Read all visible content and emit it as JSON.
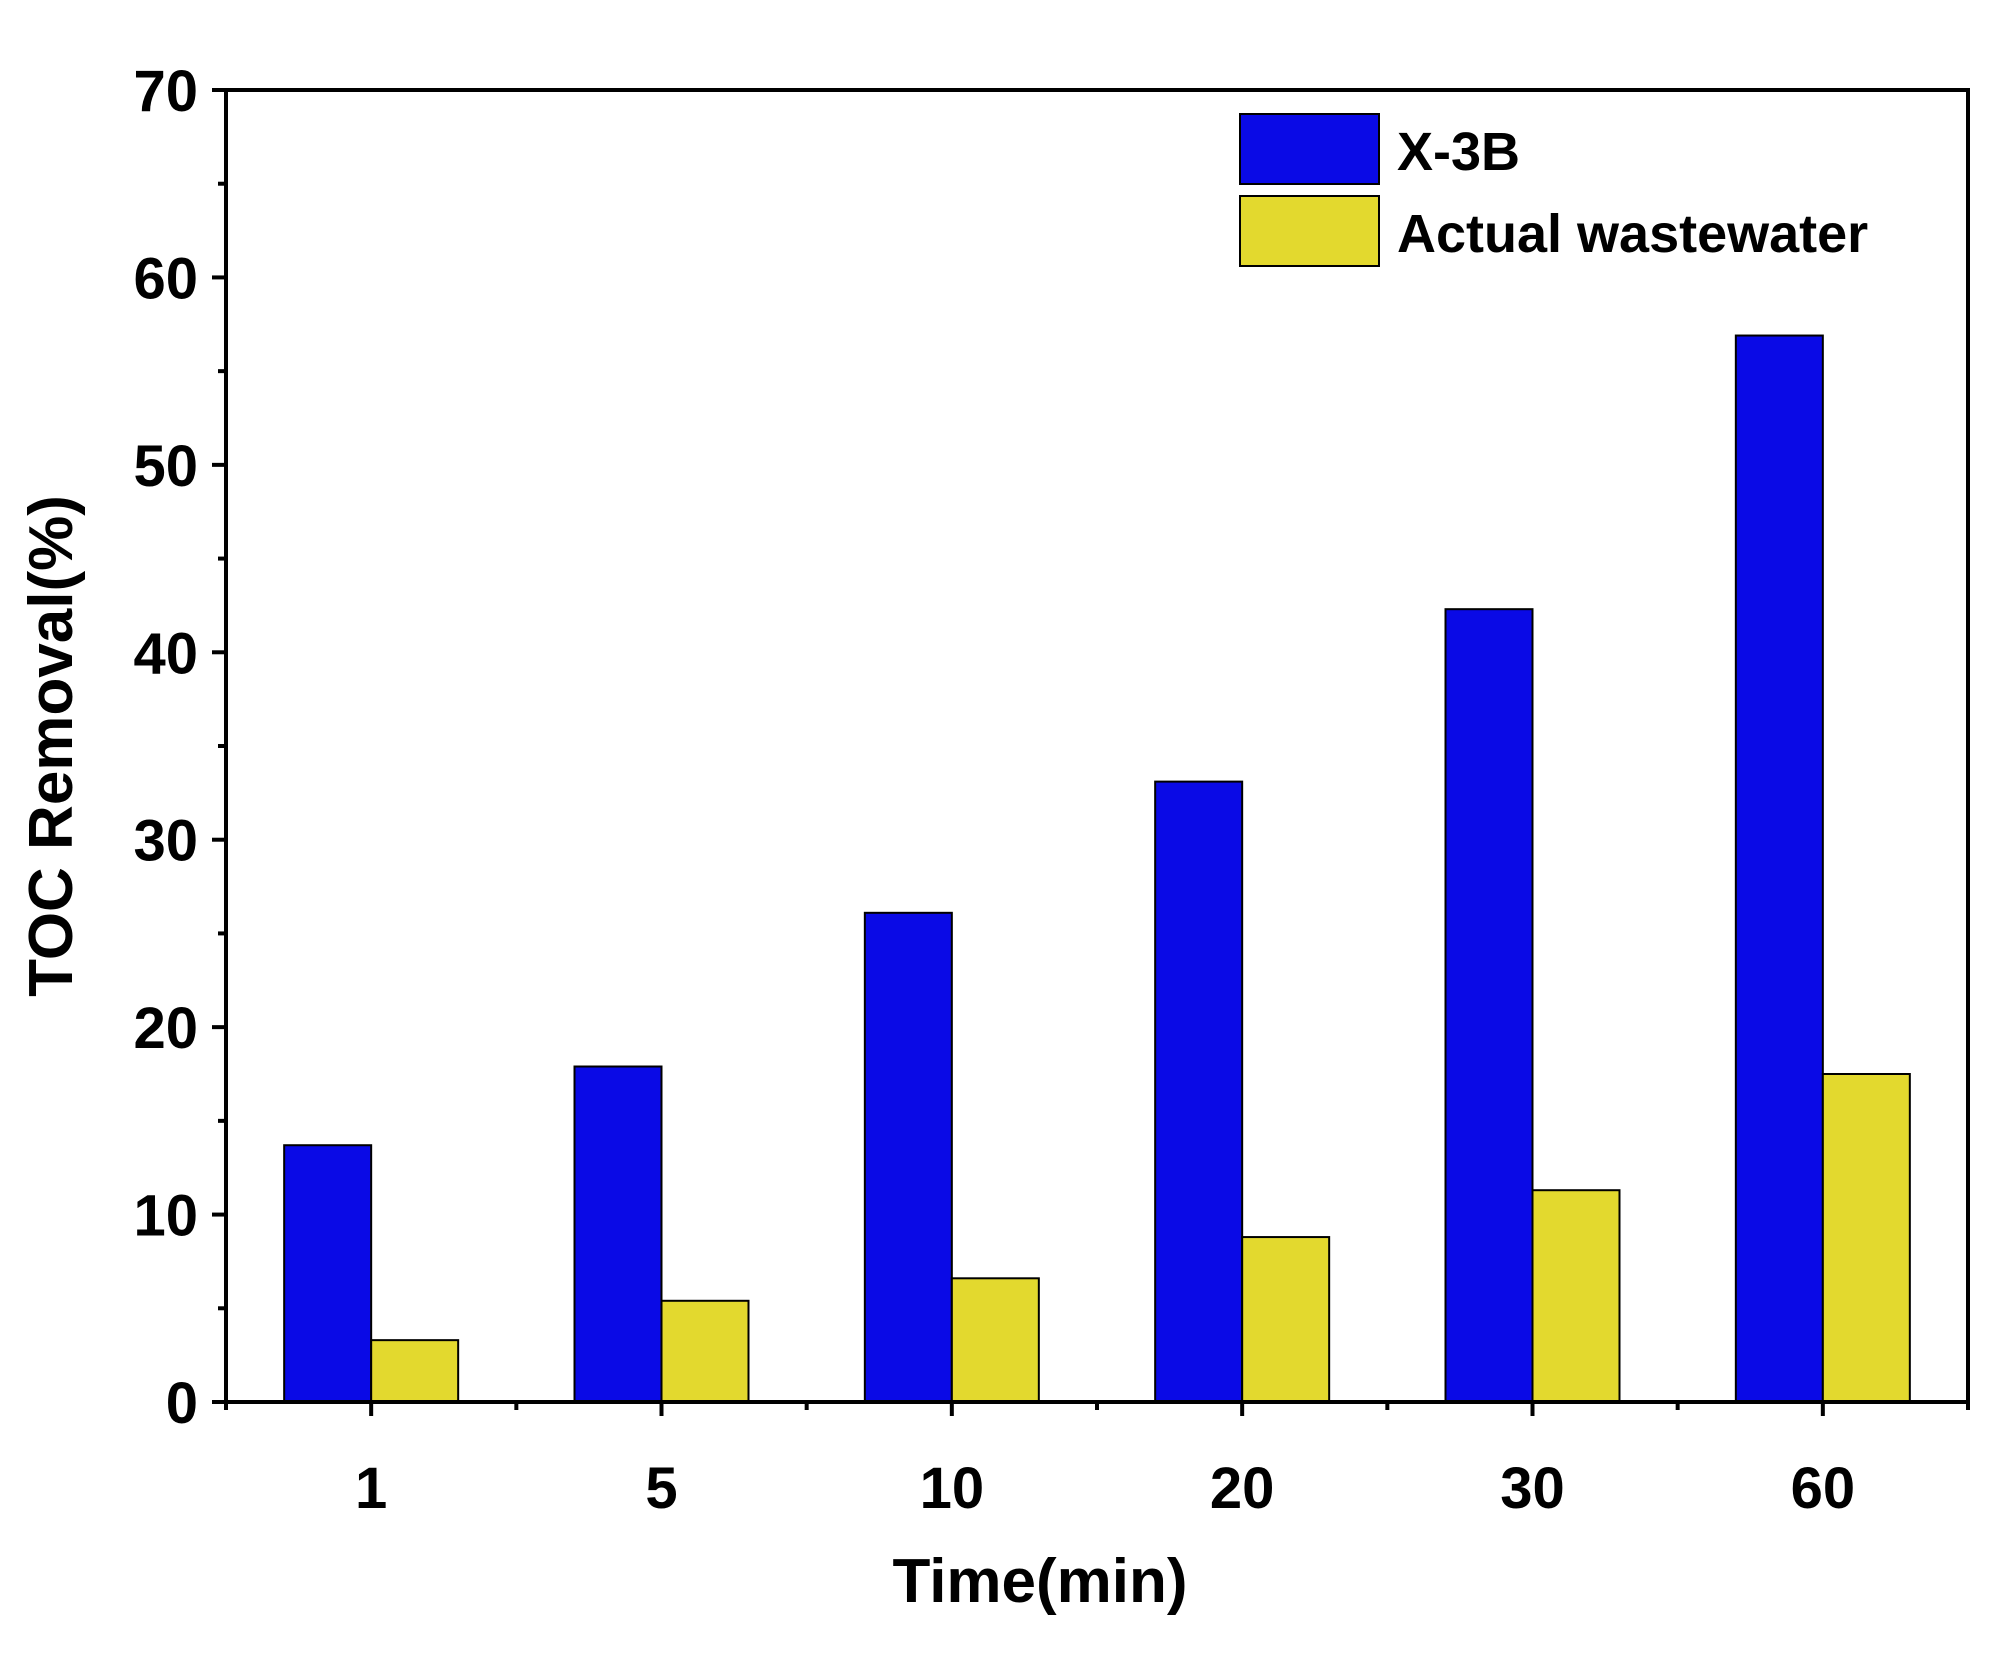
{
  "chart_data": {
    "type": "bar",
    "title": "",
    "xlabel": "Time(min)",
    "ylabel": "TOC Removal(%)",
    "ylim": [
      0,
      70
    ],
    "yticks": [
      0,
      10,
      20,
      30,
      40,
      50,
      60,
      70
    ],
    "categories": [
      "1",
      "5",
      "10",
      "20",
      "30",
      "60"
    ],
    "series": [
      {
        "name": "X-3B",
        "color": "#0a0ae6",
        "values": [
          13.7,
          17.9,
          26.1,
          33.1,
          42.3,
          56.9
        ]
      },
      {
        "name": "Actual wastewater",
        "color": "#e3d92e",
        "values": [
          3.3,
          5.4,
          6.6,
          8.8,
          11.3,
          17.5
        ]
      }
    ],
    "legend": {
      "position": "top-right"
    },
    "grid": false
  }
}
